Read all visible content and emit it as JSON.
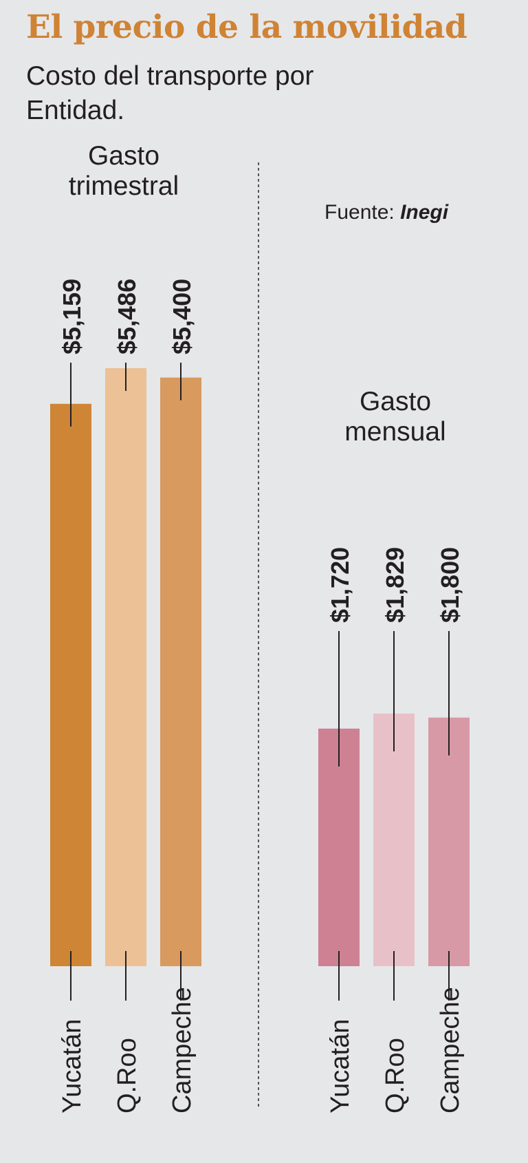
{
  "title": "El precio de la movilidad",
  "subtitle": "Costo del transporte por Entidad.",
  "source_label": "Fuente:",
  "source_name": "Inegi",
  "chart_data": [
    {
      "type": "bar",
      "title": "Gasto trimestral",
      "title_lines": [
        "Gasto",
        "trimestral"
      ],
      "categories": [
        "Yucatán",
        "Q.Roo",
        "Campeche"
      ],
      "values": [
        5159,
        5486,
        5400
      ],
      "value_labels": [
        "$5,159",
        "$5,486",
        "$5,400"
      ],
      "colors": [
        "#cf8536",
        "#ebc195",
        "#d89a5e"
      ]
    },
    {
      "type": "bar",
      "title": "Gasto mensual",
      "title_lines": [
        "Gasto",
        "mensual"
      ],
      "categories": [
        "Yucatán",
        "Q.Roo",
        "Campeche"
      ],
      "values": [
        1720,
        1829,
        1800
      ],
      "value_labels": [
        "$1,720",
        "$1,829",
        "$1,800"
      ],
      "colors": [
        "#cd8193",
        "#e8c1c8",
        "#d899a7"
      ]
    }
  ]
}
